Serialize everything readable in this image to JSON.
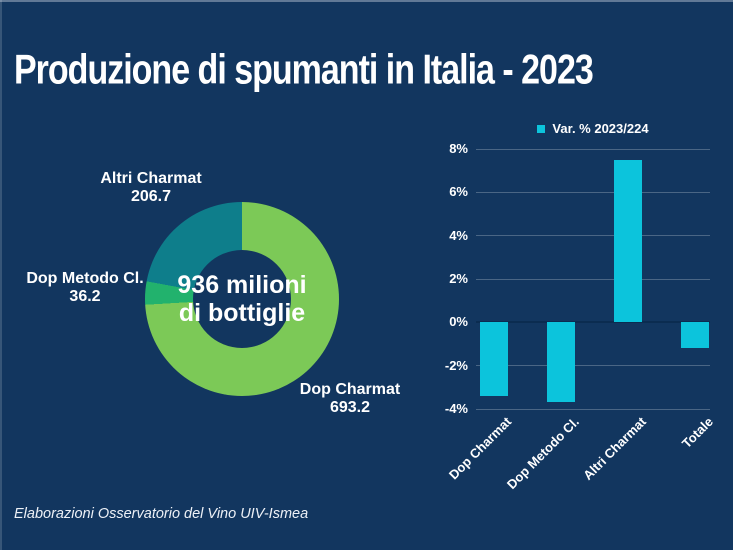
{
  "page": {
    "title": "Produzione di spumanti in Italia - 2023",
    "source_note": "Elaborazioni Osservatorio del Vino UIV-Ismea",
    "colors": {
      "background": "#12365F",
      "text": "#FFFFFF",
      "bar": "#0CC4DC",
      "grid": "rgba(255,255,255,0.24)",
      "zero_line": "#0B2C50"
    }
  },
  "chart_data": [
    {
      "type": "pie",
      "subtype": "donut",
      "center_label": [
        "936 milioni",
        "di bottiglie"
      ],
      "total": 936.1,
      "unit": "milioni di bottiglie",
      "slices": [
        {
          "label": "Dop Charmat",
          "value": 693.2,
          "color": "#7CC957"
        },
        {
          "label": "Dop Metodo Cl.",
          "value": 36.2,
          "color": "#22B26D"
        },
        {
          "label": "Altri Charmat",
          "value": 206.7,
          "color": "#0E7E8B"
        }
      ],
      "start_angle_deg": 0,
      "direction": "clockwise",
      "legend_position": "labels-around"
    },
    {
      "type": "bar",
      "legend": {
        "label": "Var. % 2023/224",
        "marker_color": "#0CC4DC"
      },
      "categories": [
        "Dop Charmat",
        "Dop Metodo Cl.",
        "Altri Charmat",
        "Totale"
      ],
      "values": [
        -3.4,
        -3.7,
        7.5,
        -1.2
      ],
      "unit": "%",
      "ylim": [
        -4,
        8
      ],
      "ytick_step": 2,
      "ytick_labels": [
        "8%",
        "6%",
        "4%",
        "2%",
        "0%",
        "-2%",
        "-4%"
      ],
      "grid": true,
      "legend_position": "top-center",
      "xlabel_rotation_deg": -45
    }
  ]
}
